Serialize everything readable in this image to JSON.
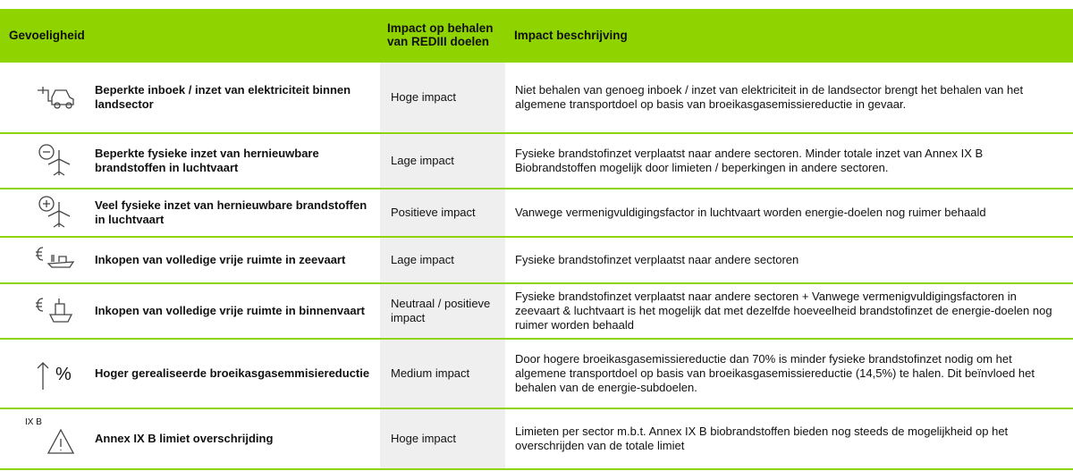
{
  "header": {
    "sensitivity": "Gevoeligheid",
    "impact": "Impact op behalen van REDIII doelen",
    "description": "Impact beschrijving"
  },
  "rows": [
    {
      "sensitivity": "Beperkte inboek / inzet van elektriciteit binnen landsector",
      "impact": "Hoge impact",
      "description": "Niet behalen van genoeg inboek / inzet van elektriciteit in de landsector brengt het behalen van het algemene transportdoel op basis van broeikasgasemissiereductie in gevaar."
    },
    {
      "sensitivity": "Beperkte fysieke inzet van hernieuwbare brandstoffen in luchtvaart",
      "impact": "Lage impact",
      "description": "Fysieke brandstofinzet verplaatst naar andere sectoren. Minder totale inzet van Annex IX B Biobrandstoffen mogelijk door limieten / beperkingen in andere sectoren."
    },
    {
      "sensitivity": "Veel fysieke inzet van hernieuwbare brandstoffen in luchtvaart",
      "impact": "Positieve impact",
      "description": "Vanwege vermenigvuldigingsfactor in luchtvaart worden energie-doelen nog ruimer behaald"
    },
    {
      "sensitivity": "Inkopen van volledige vrije ruimte in zeevaart",
      "impact": "Lage impact",
      "description": "Fysieke brandstofinzet verplaatst naar andere sectoren"
    },
    {
      "sensitivity": "Inkopen van volledige vrije ruimte in binnenvaart",
      "impact": "Neutraal / positieve impact",
      "description": "Fysieke brandstofinzet verplaatst naar andere sectoren + Vanwege vermenigvuldigingsfactoren in zeevaart & luchtvaart is het mogelijk dat met dezelfde hoeveelheid brandstofinzet de energie-doelen nog ruimer worden behaald"
    },
    {
      "sensitivity": "Hoger gerealiseerde broeikasgasemmisiereductie",
      "impact": "Medium impact",
      "description": "Door hogere broeikasgasemissiereductie dan 70% is minder fysieke brandstofinzet nodig om het algemene transportdoel op basis van broeikasgasemissiereductie (14,5%) te halen. Dit beïnvloed het behalen van de energie-subdoelen.",
      "icon_text": "%"
    },
    {
      "sensitivity": "Annex IX B limiet overschrijding",
      "impact": "Hoge impact",
      "description": "Limieten per sector m.b.t. Annex IX B biobrandstoffen bieden nog steeds de mogelijkheid op het overschrijden van de totale limiet",
      "icon_text": "IX B"
    }
  ]
}
